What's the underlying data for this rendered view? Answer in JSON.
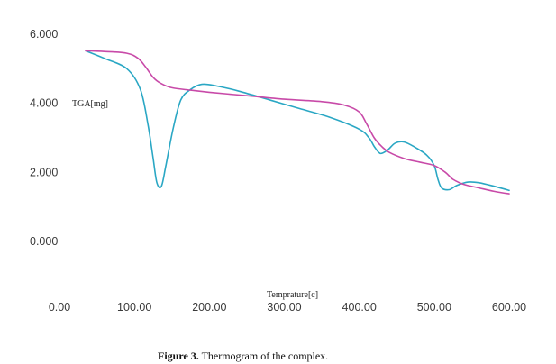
{
  "chart_data": {
    "type": "line",
    "title": "",
    "xlabel": "Temprature[c]",
    "ylabel": "TGA[mg]",
    "xlim": [
      0,
      600
    ],
    "ylim": [
      0,
      6
    ],
    "grid": false,
    "legend": "none",
    "x_ticks": [
      "0.00",
      "100.00",
      "200.00",
      "300.00",
      "400.00",
      "500.00",
      "600.00"
    ],
    "x_tick_values": [
      0,
      100,
      200,
      300,
      400,
      500,
      600
    ],
    "y_ticks": [
      "0.000",
      "2.000",
      "4.000",
      "6.000"
    ],
    "y_tick_values": [
      0,
      2,
      4,
      6
    ],
    "series": [
      {
        "color": "#2aa7c4",
        "x": [
          35,
          60,
          90,
          108,
          118,
          125,
          130,
          136,
          142,
          152,
          162,
          175,
          190,
          210,
          240,
          280,
          320,
          360,
          400,
          413,
          420,
          428,
          438,
          448,
          460,
          475,
          490,
          500,
          505,
          510,
          520,
          530,
          545,
          560,
          580,
          600
        ],
        "y": [
          5.52,
          5.3,
          5.0,
          4.4,
          3.4,
          2.4,
          1.7,
          1.6,
          2.2,
          3.3,
          4.1,
          4.4,
          4.55,
          4.5,
          4.35,
          4.1,
          3.85,
          3.6,
          3.25,
          3.0,
          2.75,
          2.55,
          2.65,
          2.85,
          2.88,
          2.72,
          2.5,
          2.2,
          1.8,
          1.55,
          1.5,
          1.62,
          1.72,
          1.7,
          1.6,
          1.48
        ]
      },
      {
        "color": "#c84aa8",
        "x": [
          35,
          60,
          90,
          105,
          115,
          125,
          135,
          150,
          175,
          200,
          250,
          300,
          350,
          380,
          400,
          410,
          420,
          430,
          440,
          460,
          480,
          500,
          515,
          525,
          540,
          560,
          580,
          600
        ],
        "y": [
          5.52,
          5.5,
          5.45,
          5.3,
          5.05,
          4.75,
          4.58,
          4.45,
          4.38,
          4.32,
          4.22,
          4.12,
          4.05,
          3.95,
          3.75,
          3.4,
          3.0,
          2.75,
          2.58,
          2.4,
          2.3,
          2.2,
          2.0,
          1.8,
          1.65,
          1.55,
          1.45,
          1.38
        ]
      }
    ]
  },
  "caption": {
    "label": "Figure 3.",
    "text": " Thermogram of the complex."
  }
}
